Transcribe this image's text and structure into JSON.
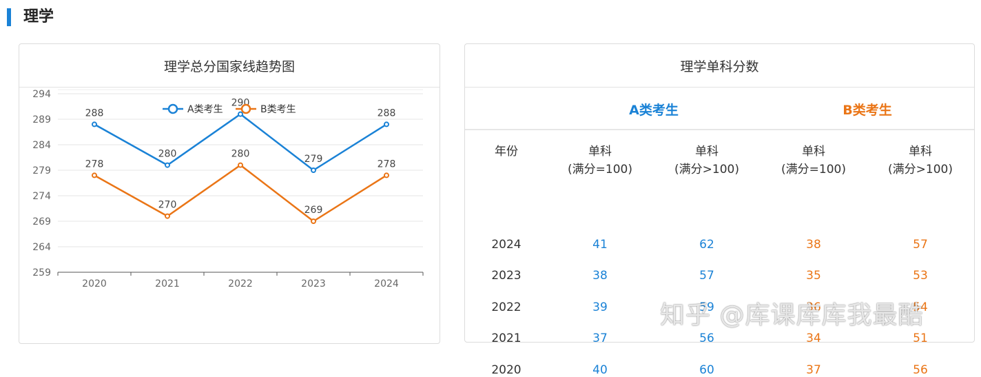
{
  "section": {
    "title": "理学"
  },
  "left_card": {
    "title": "理学总分国家线趋势图"
  },
  "chart_data": {
    "type": "line",
    "title": "理学总分国家线趋势图",
    "categories": [
      "2020",
      "2021",
      "2022",
      "2023",
      "2024"
    ],
    "series": [
      {
        "name": "A类考生",
        "color": "#1a82d6",
        "values": [
          288,
          280,
          290,
          279,
          288
        ]
      },
      {
        "name": "B类考生",
        "color": "#ea7516",
        "values": [
          278,
          270,
          280,
          269,
          278
        ]
      }
    ],
    "y_ticks": [
      259,
      264,
      269,
      274,
      279,
      284,
      289,
      294
    ],
    "ylim": [
      259,
      294
    ],
    "grid": true,
    "legend_position": "top-center",
    "data_labels": true
  },
  "right_card": {
    "title": "理学单科分数",
    "groups": {
      "a": "A类考生",
      "b": "B类考生"
    },
    "headers": {
      "year": "年份",
      "a1": [
        "单科",
        "(满分=100)"
      ],
      "a2": [
        "单科",
        "(满分>100)"
      ],
      "b1": [
        "单科",
        "(满分=100)"
      ],
      "b2": [
        "单科",
        "(满分>100)"
      ]
    },
    "rows": [
      {
        "year": "2024",
        "a1": "41",
        "a2": "62",
        "b1": "38",
        "b2": "57"
      },
      {
        "year": "2023",
        "a1": "38",
        "a2": "57",
        "b1": "35",
        "b2": "53"
      },
      {
        "year": "2022",
        "a1": "39",
        "a2": "59",
        "b1": "36",
        "b2": "54"
      },
      {
        "year": "2021",
        "a1": "37",
        "a2": "56",
        "b1": "34",
        "b2": "51"
      },
      {
        "year": "2020",
        "a1": "40",
        "a2": "60",
        "b1": "37",
        "b2": "56"
      }
    ]
  },
  "watermark": "知乎 @库课库库我最酷"
}
